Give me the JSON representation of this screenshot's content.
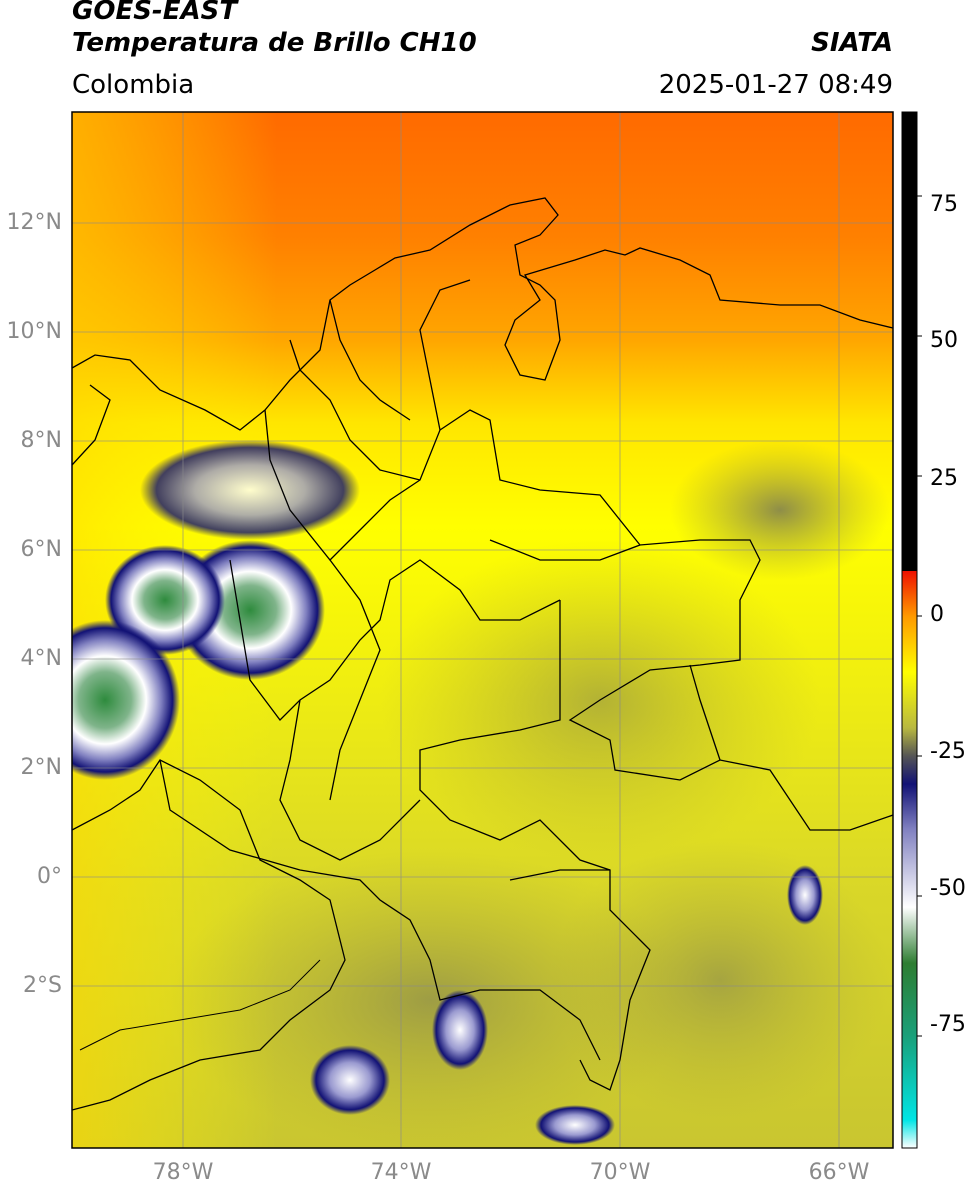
{
  "header": {
    "satellite": "GOES-EAST",
    "product": "Temperatura de Brillo CH10",
    "agency": "SIATA",
    "region": "Colombia",
    "datetime": "2025-01-27 08:49"
  },
  "axes": {
    "lat_labels": [
      "12°N",
      "10°N",
      "8°N",
      "6°N",
      "4°N",
      "2°N",
      "0°",
      "2°S"
    ],
    "lon_labels": [
      "78°W",
      "74°W",
      "70°W",
      "66°W"
    ]
  },
  "colorbar": {
    "tick_labels": [
      "75",
      "50",
      "25",
      "0",
      "-25",
      "-50",
      "-75"
    ],
    "range": [
      -95,
      90
    ],
    "stops": [
      {
        "value": -95,
        "color": "#ffffff"
      },
      {
        "value": -90,
        "color": "#00e5e5"
      },
      {
        "value": -75,
        "color": "#1aa07a"
      },
      {
        "value": -62,
        "color": "#2e7d32"
      },
      {
        "value": -52,
        "color": "#ffffff"
      },
      {
        "value": -38,
        "color": "#8080c0"
      },
      {
        "value": -30,
        "color": "#121275"
      },
      {
        "value": -25,
        "color": "#555555"
      },
      {
        "value": -20,
        "color": "#b8b840"
      },
      {
        "value": -10,
        "color": "#ffff00"
      },
      {
        "value": 0,
        "color": "#ff9900"
      },
      {
        "value": 8,
        "color": "#ee1100"
      },
      {
        "value": 8.01,
        "color": "#000000"
      },
      {
        "value": 90,
        "color": "#000000"
      }
    ]
  },
  "colors": {
    "frame": "#000000",
    "grid": "#8a8a8a",
    "boundaries": "#000000"
  }
}
